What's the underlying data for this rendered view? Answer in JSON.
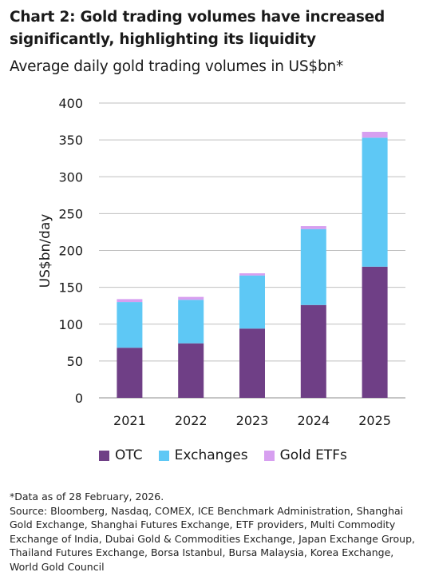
{
  "header": {
    "title": "Chart 2: Gold trading volumes have increased significantly, highlighting its liquidity",
    "subtitle": "Average daily gold trading volumes in US$bn*"
  },
  "colors": {
    "OTC": "#6f3f86",
    "Exchanges": "#5ec8f5",
    "Gold ETFs": "#d79ff0",
    "grid": "#bfbfbf"
  },
  "chart_data": {
    "type": "bar",
    "stacked": true,
    "categories": [
      "2021",
      "2022",
      "2023",
      "2024",
      "2025"
    ],
    "series": [
      {
        "name": "OTC",
        "values": [
          68,
          74,
          94,
          126,
          178
        ]
      },
      {
        "name": "Exchanges",
        "values": [
          62,
          59,
          72,
          103,
          175
        ]
      },
      {
        "name": "Gold ETFs",
        "values": [
          4,
          4,
          3,
          4,
          8
        ]
      }
    ],
    "ylabel": "US$bn/day",
    "ylim": [
      0,
      400
    ],
    "yticks": [
      0,
      50,
      100,
      150,
      200,
      250,
      300,
      350,
      400
    ],
    "grid": true,
    "legend": "bottom"
  },
  "legend": {
    "items": [
      "OTC",
      "Exchanges",
      "Gold ETFs"
    ]
  },
  "notes": {
    "asof": "*Data as of 28 February, 2026.",
    "source": "Source: Bloomberg, Nasdaq, COMEX, ICE Benchmark Administration, Shanghai Gold Exchange, Shanghai Futures Exchange, ETF providers, Multi Commodity Exchange of India, Dubai Gold & Commodities Exchange, Japan Exchange Group, Thailand Futures Exchange, Borsa Istanbul, Bursa Malaysia, Korea Exchange, World Gold Council"
  }
}
